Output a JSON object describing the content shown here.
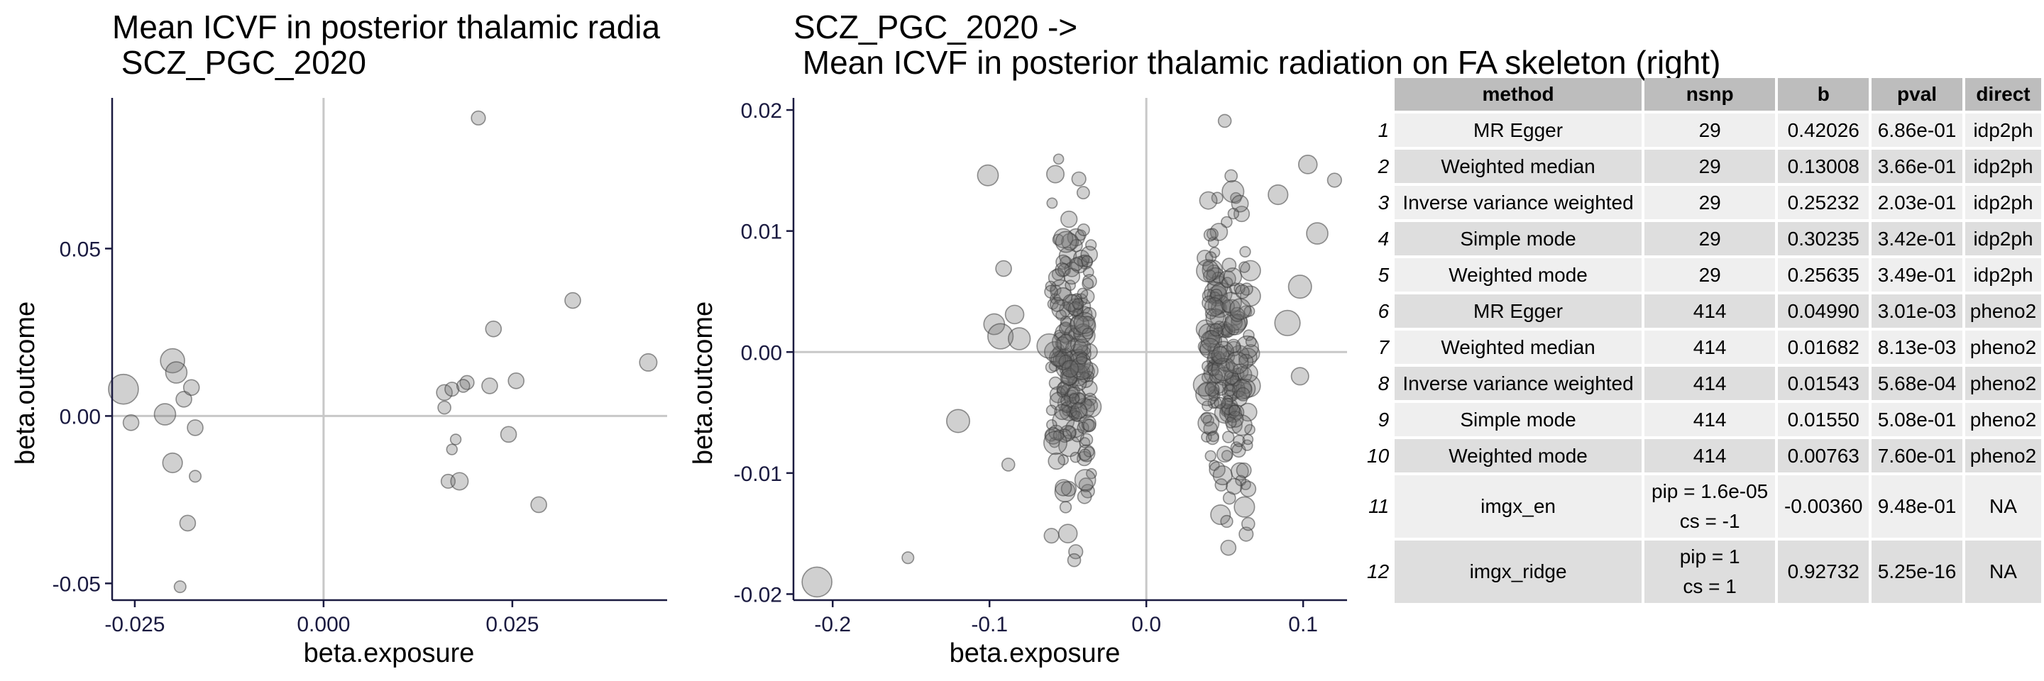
{
  "chart_data": [
    {
      "type": "scatter",
      "title_lines": [
        "Mean ICVF in posterior thalamic radia",
        " SCZ_PGC_2020"
      ],
      "xlabel": "beta.exposure",
      "ylabel": "beta.outcome",
      "xlim": [
        -0.028,
        0.0455
      ],
      "ylim": [
        -0.055,
        0.095
      ],
      "xticks": [
        -0.025,
        0.0,
        0.025
      ],
      "xtick_labels": [
        "-0.025",
        "0.000",
        "0.025"
      ],
      "yticks": [
        -0.05,
        0.0,
        0.05
      ],
      "ytick_labels": [
        "-0.05",
        "0.00",
        "0.05"
      ],
      "reference_lines": {
        "x": 0,
        "y": 0
      },
      "grid": false,
      "points": [
        {
          "x": -0.0265,
          "y": 0.008,
          "size": 4.0
        },
        {
          "x": -0.0255,
          "y": -0.002,
          "size": 1.5
        },
        {
          "x": -0.021,
          "y": 0.0005,
          "size": 2.5
        },
        {
          "x": -0.02,
          "y": 0.0165,
          "size": 3.0
        },
        {
          "x": -0.0195,
          "y": 0.013,
          "size": 2.5
        },
        {
          "x": -0.0185,
          "y": 0.005,
          "size": 1.5
        },
        {
          "x": -0.0175,
          "y": 0.0085,
          "size": 1.5
        },
        {
          "x": -0.017,
          "y": -0.0035,
          "size": 1.5
        },
        {
          "x": -0.02,
          "y": -0.014,
          "size": 2.2
        },
        {
          "x": -0.017,
          "y": -0.018,
          "size": 0.8
        },
        {
          "x": -0.018,
          "y": -0.032,
          "size": 1.5
        },
        {
          "x": -0.019,
          "y": -0.051,
          "size": 0.8
        },
        {
          "x": 0.016,
          "y": 0.007,
          "size": 1.5
        },
        {
          "x": 0.017,
          "y": 0.008,
          "size": 1.2
        },
        {
          "x": 0.016,
          "y": 0.0025,
          "size": 1.0
        },
        {
          "x": 0.017,
          "y": -0.01,
          "size": 0.6
        },
        {
          "x": 0.0165,
          "y": -0.0195,
          "size": 1.2
        },
        {
          "x": 0.018,
          "y": -0.0195,
          "size": 1.8
        },
        {
          "x": 0.019,
          "y": 0.01,
          "size": 1.2
        },
        {
          "x": 0.0185,
          "y": 0.009,
          "size": 1.0
        },
        {
          "x": 0.0205,
          "y": 0.089,
          "size": 1.2
        },
        {
          "x": 0.022,
          "y": 0.009,
          "size": 1.5
        },
        {
          "x": 0.0225,
          "y": 0.026,
          "size": 1.5
        },
        {
          "x": 0.0245,
          "y": -0.0055,
          "size": 1.5
        },
        {
          "x": 0.0255,
          "y": 0.0105,
          "size": 1.5
        },
        {
          "x": 0.0285,
          "y": -0.0265,
          "size": 1.5
        },
        {
          "x": 0.033,
          "y": 0.0345,
          "size": 1.5
        },
        {
          "x": 0.043,
          "y": 0.016,
          "size": 1.8
        },
        {
          "x": 0.0175,
          "y": -0.007,
          "size": 0.6
        }
      ]
    },
    {
      "type": "scatter",
      "title_lines": [
        "SCZ_PGC_2020 ->",
        " Mean ICVF in posterior thalamic radiation on FA skeleton (right)"
      ],
      "xlabel": "beta.exposure",
      "ylabel": "beta.outcome",
      "xlim": [
        -0.225,
        0.128
      ],
      "ylim": [
        -0.0205,
        0.021
      ],
      "xticks": [
        -0.2,
        -0.1,
        0.0,
        0.1
      ],
      "xtick_labels": [
        "-0.2",
        "-0.1",
        "0.0",
        "0.1"
      ],
      "yticks": [
        -0.02,
        -0.01,
        0.0,
        0.01,
        0.02
      ],
      "ytick_labels": [
        "-0.02",
        "-0.01",
        "0.00",
        "0.01",
        "0.02"
      ],
      "reference_lines": {
        "x": 0,
        "y": 0
      },
      "grid": false,
      "n_points": 414,
      "highlight_points": [
        {
          "x": -0.21,
          "y": -0.019,
          "size": 4.0
        },
        {
          "x": -0.152,
          "y": -0.017,
          "size": 0.8
        },
        {
          "x": -0.12,
          "y": -0.0057,
          "size": 2.8
        },
        {
          "x": -0.101,
          "y": 0.0146,
          "size": 2.4
        },
        {
          "x": -0.097,
          "y": 0.0023,
          "size": 2.4
        },
        {
          "x": -0.093,
          "y": 0.0013,
          "size": 3.2
        },
        {
          "x": -0.091,
          "y": 0.0069,
          "size": 1.5
        },
        {
          "x": -0.088,
          "y": -0.0093,
          "size": 1.0
        },
        {
          "x": -0.084,
          "y": 0.0031,
          "size": 2.0
        },
        {
          "x": -0.081,
          "y": 0.0011,
          "size": 2.6
        },
        {
          "x": -0.058,
          "y": 0.0147,
          "size": 1.8
        },
        {
          "x": -0.043,
          "y": 0.0143,
          "size": 1.2
        },
        {
          "x": -0.04,
          "y": 0.0101,
          "size": 0.8
        },
        {
          "x": -0.045,
          "y": -0.0165,
          "size": 1.2
        },
        {
          "x": -0.05,
          "y": -0.015,
          "size": 2.0
        },
        {
          "x": -0.046,
          "y": -0.0172,
          "size": 1.0
        },
        {
          "x": 0.05,
          "y": 0.0191,
          "size": 1.0
        },
        {
          "x": 0.103,
          "y": 0.0155,
          "size": 2.0
        },
        {
          "x": 0.12,
          "y": 0.0142,
          "size": 1.2
        },
        {
          "x": 0.109,
          "y": 0.0098,
          "size": 2.5
        },
        {
          "x": 0.098,
          "y": 0.0054,
          "size": 2.8
        },
        {
          "x": 0.09,
          "y": 0.0024,
          "size": 3.2
        },
        {
          "x": 0.084,
          "y": 0.013,
          "size": 2.2
        },
        {
          "x": 0.098,
          "y": -0.002,
          "size": 1.8
        },
        {
          "x": 0.065,
          "y": -0.0142,
          "size": 1.0
        },
        {
          "x": 0.056,
          "y": -0.0111,
          "size": 1.5
        },
        {
          "x": -0.062,
          "y": 0.0005,
          "size": 3.0
        },
        {
          "x": -0.058,
          "y": -0.0075,
          "size": 2.8
        }
      ],
      "clusters": [
        {
          "x_center": -0.048,
          "x_spread": 0.013,
          "y_sd": 0.0055,
          "count": 190
        },
        {
          "x_center": 0.052,
          "x_spread": 0.015,
          "y_sd": 0.0052,
          "count": 196
        }
      ]
    }
  ],
  "table": {
    "headers": [
      "method",
      "nsnp",
      "b",
      "pval",
      "direct"
    ],
    "rows": [
      {
        "id": "1",
        "method": "MR Egger",
        "nsnp": [
          "29"
        ],
        "b": "0.42026",
        "pval": "6.86e-01",
        "direct": "idp2ph"
      },
      {
        "id": "2",
        "method": "Weighted median",
        "nsnp": [
          "29"
        ],
        "b": "0.13008",
        "pval": "3.66e-01",
        "direct": "idp2ph"
      },
      {
        "id": "3",
        "method": "Inverse variance weighted",
        "nsnp": [
          "29"
        ],
        "b": "0.25232",
        "pval": "2.03e-01",
        "direct": "idp2ph"
      },
      {
        "id": "4",
        "method": "Simple mode",
        "nsnp": [
          "29"
        ],
        "b": "0.30235",
        "pval": "3.42e-01",
        "direct": "idp2ph"
      },
      {
        "id": "5",
        "method": "Weighted mode",
        "nsnp": [
          "29"
        ],
        "b": "0.25635",
        "pval": "3.49e-01",
        "direct": "idp2ph"
      },
      {
        "id": "6",
        "method": "MR Egger",
        "nsnp": [
          "414"
        ],
        "b": "0.04990",
        "pval": "3.01e-03",
        "direct": "pheno2"
      },
      {
        "id": "7",
        "method": "Weighted median",
        "nsnp": [
          "414"
        ],
        "b": "0.01682",
        "pval": "8.13e-03",
        "direct": "pheno2"
      },
      {
        "id": "8",
        "method": "Inverse variance weighted",
        "nsnp": [
          "414"
        ],
        "b": "0.01543",
        "pval": "5.68e-04",
        "direct": "pheno2"
      },
      {
        "id": "9",
        "method": "Simple mode",
        "nsnp": [
          "414"
        ],
        "b": "0.01550",
        "pval": "5.08e-01",
        "direct": "pheno2"
      },
      {
        "id": "10",
        "method": "Weighted mode",
        "nsnp": [
          "414"
        ],
        "b": "0.00763",
        "pval": "7.60e-01",
        "direct": "pheno2"
      },
      {
        "id": "11",
        "method": "imgx_en",
        "nsnp": [
          "pip = 1.6e-05",
          "cs = -1"
        ],
        "b": "-0.00360",
        "pval": "9.48e-01",
        "direct": "NA"
      },
      {
        "id": "12",
        "method": "imgx_ridge",
        "nsnp": [
          "pip = 1",
          "cs = 1"
        ],
        "b": "0.92732",
        "pval": "5.25e-16",
        "direct": "NA"
      }
    ]
  }
}
